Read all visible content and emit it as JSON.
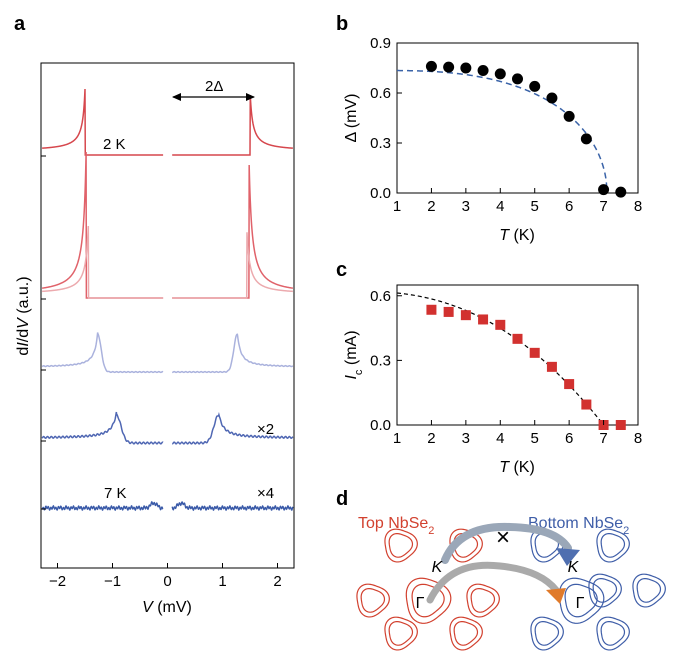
{
  "panel_labels": {
    "a": "a",
    "b": "b",
    "c": "c",
    "d": "d"
  },
  "chart_data": [
    {
      "panel": "a",
      "type": "line",
      "xlabel_italic": "V",
      "xlabel_rest": " (mV)",
      "ylabel_pre": "d",
      "ylabel_i": "I",
      "ylabel_mid": "/d",
      "ylabel_v": "V",
      "ylabel_post": " (a.u.)",
      "xlim": [
        -2.3,
        2.3
      ],
      "xticks": [
        "−2",
        "−1",
        "0",
        "1",
        "2"
      ],
      "xtick_values": [
        -2,
        -1,
        0,
        1,
        2
      ],
      "annotations": {
        "gap": "2Δ",
        "low_temp": "2 K",
        "high_temp": "7 K",
        "mult2": "×2",
        "mult4": "×4"
      },
      "series": [
        {
          "color": "#d6474d",
          "gap": 1.5,
          "peak": 1.0,
          "baseline": 0.0
        },
        {
          "color": "#e0626a",
          "gap": 1.48,
          "peak": 1.0,
          "baseline": 0.0
        },
        {
          "color": "#ecaaae",
          "gap": 1.44,
          "peak": 0.85,
          "baseline": 0.0
        },
        {
          "color": "#aab2dd",
          "gap": 1.27,
          "peak": 0.55,
          "baseline": 0.0
        },
        {
          "color": "#4f67b3",
          "gap": 0.93,
          "peak": 0.45,
          "baseline": 0.0
        },
        {
          "color": "#3a5aa8",
          "gap": 0.4,
          "peak": 0.1,
          "baseline": 0.0
        }
      ]
    },
    {
      "panel": "b",
      "type": "scatter",
      "xlabel_italic": "T",
      "xlabel_rest": " (K)",
      "ylabel_pre": "Δ",
      "ylabel_rest": " (mV)",
      "xlim": [
        1,
        8
      ],
      "ylim": [
        0.0,
        0.9
      ],
      "xticks": [
        "1",
        "2",
        "3",
        "4",
        "5",
        "6",
        "7",
        "8"
      ],
      "yticks": [
        "0.0",
        "0.3",
        "0.6",
        "0.9"
      ],
      "x": [
        2.0,
        2.5,
        3.0,
        3.5,
        4.0,
        4.5,
        5.0,
        5.5,
        6.0,
        6.5,
        7.0,
        7.5
      ],
      "y": [
        0.76,
        0.755,
        0.75,
        0.735,
        0.715,
        0.685,
        0.64,
        0.57,
        0.46,
        0.325,
        0.02,
        0.005
      ],
      "fit": {
        "style": "dashed",
        "color": "#3a63a8",
        "delta0": 0.735,
        "tc": 7.1
      }
    },
    {
      "panel": "c",
      "type": "scatter",
      "xlabel_italic": "T",
      "xlabel_rest": " (K)",
      "ylabel_i": "I",
      "ylabel_sub": "c",
      "ylabel_rest": " (mA)",
      "xlim": [
        1,
        8
      ],
      "ylim": [
        0.0,
        0.65
      ],
      "xticks": [
        "1",
        "2",
        "3",
        "4",
        "5",
        "6",
        "7",
        "8"
      ],
      "yticks": [
        "0.0",
        "0.3",
        "0.6"
      ],
      "x": [
        2.0,
        2.5,
        3.0,
        3.5,
        4.0,
        4.5,
        5.0,
        5.5,
        6.0,
        6.5,
        7.0,
        7.5
      ],
      "y": [
        0.535,
        0.525,
        0.51,
        0.49,
        0.465,
        0.4,
        0.335,
        0.27,
        0.19,
        0.095,
        0.0,
        0.0
      ],
      "fit": {
        "style": "dashed",
        "color": "#000000",
        "i0": 0.62,
        "tc": 7.0
      }
    }
  ],
  "diagram": {
    "top_label": "Top NbSe",
    "top_sub": "2",
    "bottom_label": "Bottom NbSe",
    "bottom_sub": "2",
    "k_label": "K",
    "gamma_label": "Γ",
    "blocked_mark": "×",
    "colors": {
      "top": "#d2412f",
      "bottom": "#3f5ea8"
    }
  }
}
